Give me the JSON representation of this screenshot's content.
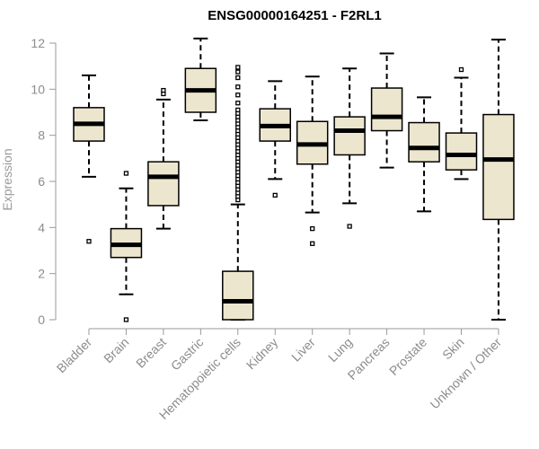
{
  "chart_data": {
    "type": "box",
    "title": "ENSG00000164251 - F2RL1",
    "ylabel": "Expression",
    "xlabel": "",
    "ylim": [
      0,
      12
    ],
    "yticks": [
      0,
      2,
      4,
      6,
      8,
      10,
      12
    ],
    "box_fill": "#ede6cf",
    "box_stroke": "#000000",
    "axis_color": "#9a9a9a",
    "categories": [
      "Bladder",
      "Brain",
      "Breast",
      "Gastric",
      "Hematopoietic cells",
      "Kidney",
      "Liver",
      "Lung",
      "Pancreas",
      "Prostate",
      "Skin",
      "Unknown / Other"
    ],
    "boxes": [
      {
        "q1": 7.75,
        "median": 8.5,
        "q3": 9.2,
        "whisker_low": 6.2,
        "whisker_high": 10.6,
        "outliers": [
          3.4
        ]
      },
      {
        "q1": 2.7,
        "median": 3.25,
        "q3": 3.95,
        "whisker_low": 1.1,
        "whisker_high": 5.7,
        "outliers": [
          0.0,
          6.35
        ]
      },
      {
        "q1": 4.95,
        "median": 6.2,
        "q3": 6.85,
        "whisker_low": 3.95,
        "whisker_high": 9.55,
        "outliers": [
          9.8,
          9.95
        ]
      },
      {
        "q1": 9.0,
        "median": 9.95,
        "q3": 10.9,
        "whisker_low": 8.65,
        "whisker_high": 12.2,
        "outliers": []
      },
      {
        "q1": 0.0,
        "median": 0.8,
        "q3": 2.1,
        "whisker_low": 0.0,
        "whisker_high": 5.0,
        "outliers": [
          5.2,
          5.35,
          5.5,
          5.65,
          5.8,
          5.95,
          6.1,
          6.25,
          6.4,
          6.55,
          6.7,
          6.85,
          7.0,
          7.15,
          7.3,
          7.45,
          7.6,
          7.75,
          7.9,
          8.05,
          8.2,
          8.35,
          8.5,
          8.65,
          8.8,
          8.95,
          9.1,
          9.4,
          9.75,
          10.1,
          10.5,
          10.75,
          10.95
        ]
      },
      {
        "q1": 7.75,
        "median": 8.4,
        "q3": 9.15,
        "whisker_low": 6.1,
        "whisker_high": 10.35,
        "outliers": [
          5.4
        ]
      },
      {
        "q1": 6.75,
        "median": 7.6,
        "q3": 8.6,
        "whisker_low": 4.65,
        "whisker_high": 10.55,
        "outliers": [
          3.95,
          3.3
        ]
      },
      {
        "q1": 7.15,
        "median": 8.2,
        "q3": 8.8,
        "whisker_low": 5.05,
        "whisker_high": 10.9,
        "outliers": [
          4.05
        ]
      },
      {
        "q1": 8.2,
        "median": 8.8,
        "q3": 10.05,
        "whisker_low": 6.6,
        "whisker_high": 11.55,
        "outliers": []
      },
      {
        "q1": 6.85,
        "median": 7.45,
        "q3": 8.55,
        "whisker_low": 4.7,
        "whisker_high": 9.65,
        "outliers": []
      },
      {
        "q1": 6.5,
        "median": 7.15,
        "q3": 8.1,
        "whisker_low": 6.1,
        "whisker_high": 10.5,
        "outliers": [
          10.85
        ]
      },
      {
        "q1": 4.35,
        "median": 6.95,
        "q3": 8.9,
        "whisker_low": 0.0,
        "whisker_high": 12.15,
        "outliers": []
      }
    ]
  }
}
